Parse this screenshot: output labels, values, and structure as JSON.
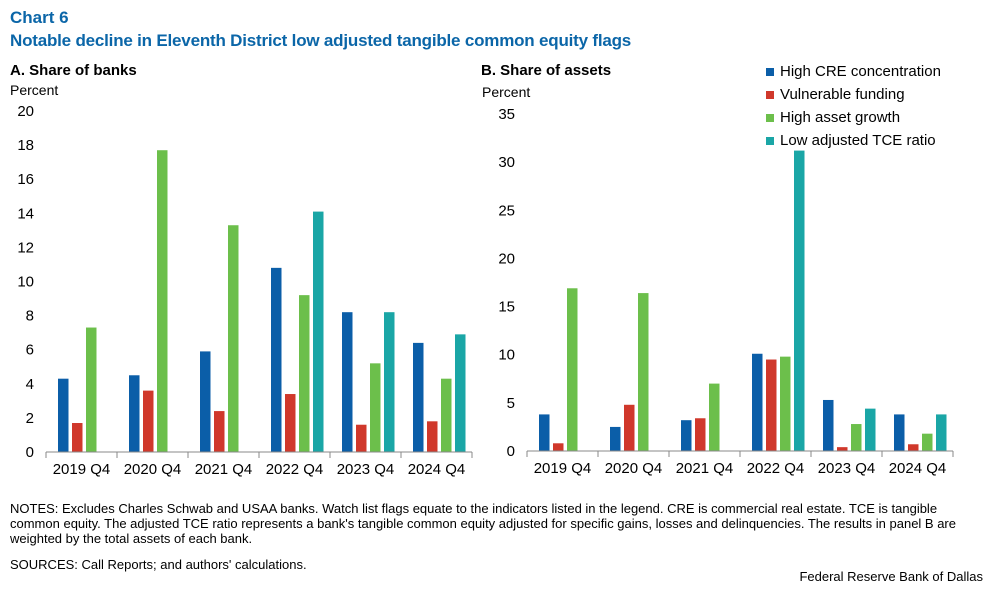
{
  "header": {
    "chart_number": "Chart 6",
    "title": "Notable decline in Eleventh District low adjusted tangible common equity flags"
  },
  "legend": [
    {
      "label": "High CRE concentration",
      "color": "#0b5ea8"
    },
    {
      "label": "Vulnerable funding",
      "color": "#d0382b"
    },
    {
      "label": "High asset growth",
      "color": "#6cbf4b"
    },
    {
      "label": "Low adjusted TCE ratio",
      "color": "#1aa6a6"
    }
  ],
  "chart_data": [
    {
      "type": "bar",
      "title": "A. Share of banks",
      "ylabel": "Percent",
      "ylim": [
        0,
        20
      ],
      "yticks": [
        0,
        2,
        4,
        6,
        8,
        10,
        12,
        14,
        16,
        18,
        20
      ],
      "categories": [
        "2019 Q4",
        "2020 Q4",
        "2021 Q4",
        "2022 Q4",
        "2023 Q4",
        "2024 Q4"
      ],
      "series": [
        {
          "name": "High CRE concentration",
          "values": [
            4.3,
            4.5,
            5.9,
            10.8,
            8.2,
            6.4
          ]
        },
        {
          "name": "Vulnerable funding",
          "values": [
            1.7,
            3.6,
            2.4,
            3.4,
            1.6,
            1.8
          ]
        },
        {
          "name": "High asset growth",
          "values": [
            7.3,
            17.7,
            13.3,
            9.2,
            5.2,
            4.3
          ]
        },
        {
          "name": "Low adjusted TCE ratio",
          "values": [
            0,
            0,
            0,
            14.1,
            8.2,
            6.9
          ]
        }
      ]
    },
    {
      "type": "bar",
      "title": "B. Share of assets",
      "ylabel": "Percent",
      "ylim": [
        0,
        35
      ],
      "yticks": [
        0,
        5,
        10,
        15,
        20,
        25,
        30,
        35
      ],
      "categories": [
        "2019 Q4",
        "2020 Q4",
        "2021 Q4",
        "2022 Q4",
        "2023 Q4",
        "2024 Q4"
      ],
      "series": [
        {
          "name": "High CRE concentration",
          "values": [
            3.8,
            2.5,
            3.2,
            10.1,
            5.3,
            3.8
          ]
        },
        {
          "name": "Vulnerable funding",
          "values": [
            0.8,
            4.8,
            3.4,
            9.5,
            0.4,
            0.7
          ]
        },
        {
          "name": "High asset growth",
          "values": [
            16.9,
            16.4,
            7.0,
            9.8,
            2.8,
            1.8
          ]
        },
        {
          "name": "Low adjusted TCE ratio",
          "values": [
            0,
            0,
            0,
            31.2,
            4.4,
            3.8
          ]
        }
      ]
    }
  ],
  "footer": {
    "notes": "NOTES: Excludes Charles Schwab and USAA banks. Watch list flags equate to the indicators listed in the legend. CRE is commercial real estate. TCE is tangible common equity. The adjusted TCE ratio represents a bank's tangible common equity adjusted for specific gains, losses and delinquencies. The results in panel B are weighted by the total assets of each bank.",
    "sources": "SOURCES: Call Reports; and authors' calculations.",
    "credit": "Federal Reserve Bank of Dallas"
  }
}
